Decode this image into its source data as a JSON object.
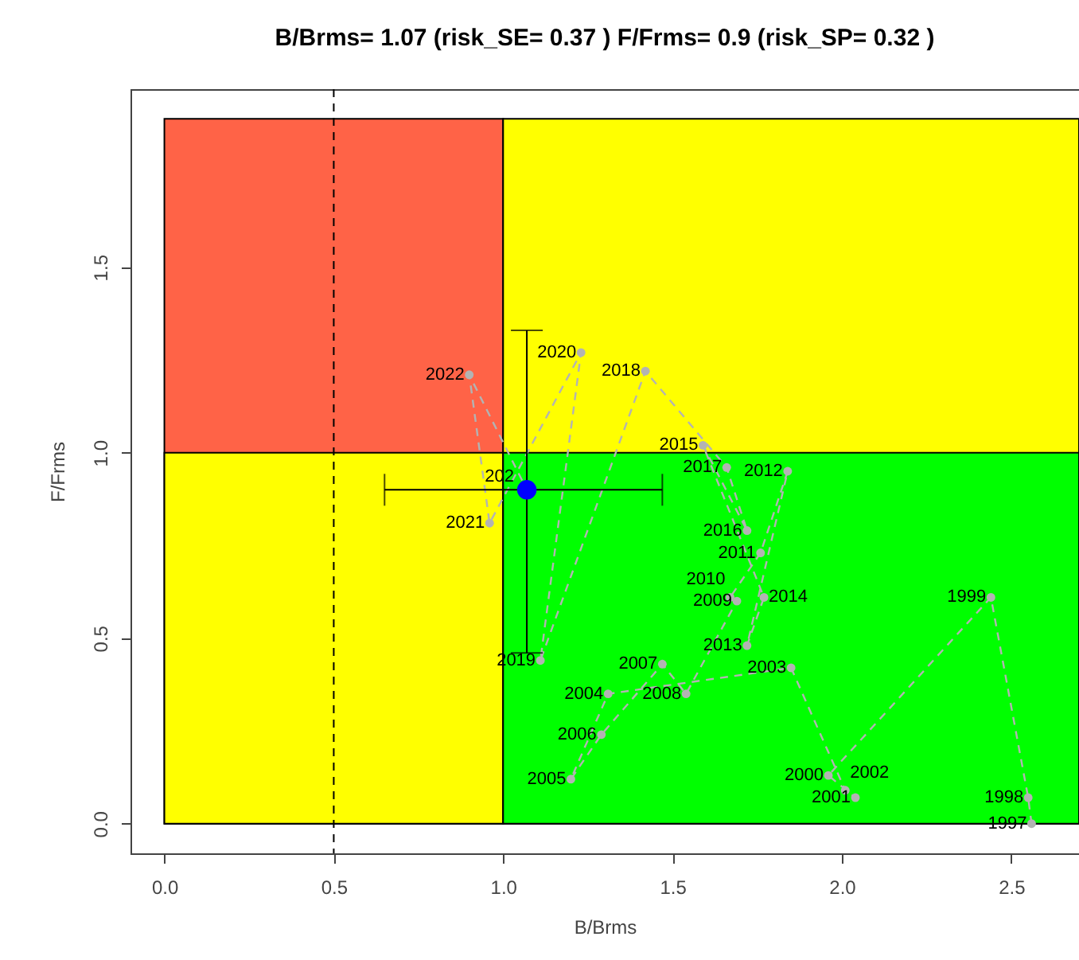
{
  "chart_data": {
    "type": "scatter",
    "title": "B/Brms= 1.07  (risk_SE= 0.37 )  F/Frms= 0.9  (risk_SP= 0.32 )",
    "xlabel": "B/Brms",
    "ylabel": "F/Frms",
    "xlim": [
      -0.1,
      2.7
    ],
    "ylim": [
      -0.08,
      1.98
    ],
    "xticks": [
      {
        "value": 0,
        "label": "0.0"
      },
      {
        "value": 0.5,
        "label": "0.5"
      },
      {
        "value": 1,
        "label": "1.0"
      },
      {
        "value": 1.5,
        "label": "1.5"
      },
      {
        "value": 2,
        "label": "2.0"
      },
      {
        "value": 2.5,
        "label": "2.5"
      }
    ],
    "yticks": [
      {
        "value": 0,
        "label": "0.0"
      },
      {
        "value": 0.5,
        "label": "0.5"
      },
      {
        "value": 1,
        "label": "1.0"
      },
      {
        "value": 1.5,
        "label": "1.5"
      }
    ],
    "grid": false,
    "ref_lines": [
      {
        "axis": "x",
        "value": 0.5,
        "line_style": "dashed",
        "color": "#000000"
      }
    ],
    "series": [
      {
        "type": "area",
        "color": "#ff6347",
        "x": [
          0,
          1
        ],
        "values": [
          1.9,
          1.9
        ]
      },
      {
        "type": "area",
        "color": "#ffff00",
        "x": [
          0,
          1
        ],
        "values": [
          1,
          1
        ]
      },
      {
        "type": "area",
        "color": "#ffff00",
        "x": [
          1,
          2.7
        ],
        "values": [
          1.9,
          1.9
        ]
      },
      {
        "type": "area",
        "color": "#00ff00",
        "x": [
          1,
          2.7
        ],
        "values": [
          1,
          1
        ]
      },
      {
        "type": "line",
        "color": "#b3b3b3",
        "line_style": "dashed",
        "marker": "circle",
        "x": [
          2.56,
          2.55,
          2.44,
          1.96,
          2.04,
          2.01,
          1.85,
          1.31,
          1.2,
          1.29,
          1.47,
          1.54,
          1.69,
          1.67,
          1.76,
          1.84,
          1.72,
          1.77,
          1.59,
          1.72,
          1.66,
          1.42,
          1.11,
          1.23,
          0.96,
          0.9,
          1.07
        ],
        "values": [
          0.0,
          0.07,
          0.61,
          0.13,
          0.07,
          0.09,
          0.42,
          0.35,
          0.12,
          0.24,
          0.43,
          0.35,
          0.6,
          0.61,
          0.73,
          0.95,
          0.48,
          0.61,
          1.02,
          0.79,
          0.96,
          1.22,
          0.44,
          1.27,
          0.81,
          1.21,
          0.9
        ]
      },
      {
        "type": "scatter",
        "color": "#0000ff",
        "marker": "circle",
        "x": [
          1.07
        ],
        "values": [
          0.9
        ],
        "errors": [
          [
            0.46,
            1.33
          ]
        ],
        "xerrors": [
          [
            0.65,
            1.47
          ]
        ]
      }
    ],
    "annotations": [
      {
        "text": "1997",
        "x": 2.56,
        "y": 0.0
      },
      {
        "text": "1998",
        "x": 2.55,
        "y": 0.07
      },
      {
        "text": "1999",
        "x": 2.44,
        "y": 0.61
      },
      {
        "text": "2000",
        "x": 1.96,
        "y": 0.13
      },
      {
        "text": "2001",
        "x": 2.04,
        "y": 0.07
      },
      {
        "text": "2002",
        "x": 2.01,
        "y": 0.09
      },
      {
        "text": "2003",
        "x": 1.85,
        "y": 0.42
      },
      {
        "text": "2004",
        "x": 1.31,
        "y": 0.35
      },
      {
        "text": "2005",
        "x": 1.2,
        "y": 0.12
      },
      {
        "text": "2006",
        "x": 1.29,
        "y": 0.24
      },
      {
        "text": "2007",
        "x": 1.47,
        "y": 0.43
      },
      {
        "text": "2008",
        "x": 1.54,
        "y": 0.35
      },
      {
        "text": "2009",
        "x": 1.69,
        "y": 0.6
      },
      {
        "text": "2010",
        "x": 1.67,
        "y": 0.61
      },
      {
        "text": "2011",
        "x": 1.76,
        "y": 0.73
      },
      {
        "text": "2012",
        "x": 1.84,
        "y": 0.95
      },
      {
        "text": "2013",
        "x": 1.72,
        "y": 0.48
      },
      {
        "text": "2014",
        "x": 1.77,
        "y": 0.61
      },
      {
        "text": "2015",
        "x": 1.59,
        "y": 1.02
      },
      {
        "text": "2016",
        "x": 1.72,
        "y": 0.79
      },
      {
        "text": "2017",
        "x": 1.66,
        "y": 0.96
      },
      {
        "text": "2018",
        "x": 1.42,
        "y": 1.22
      },
      {
        "text": "2019",
        "x": 1.11,
        "y": 0.44
      },
      {
        "text": "2020",
        "x": 1.23,
        "y": 1.27
      },
      {
        "text": "2021",
        "x": 0.96,
        "y": 0.81
      },
      {
        "text": "2022",
        "x": 0.9,
        "y": 1.21
      },
      {
        "text": "202",
        "x": 1.07,
        "y": 0.9
      }
    ]
  }
}
